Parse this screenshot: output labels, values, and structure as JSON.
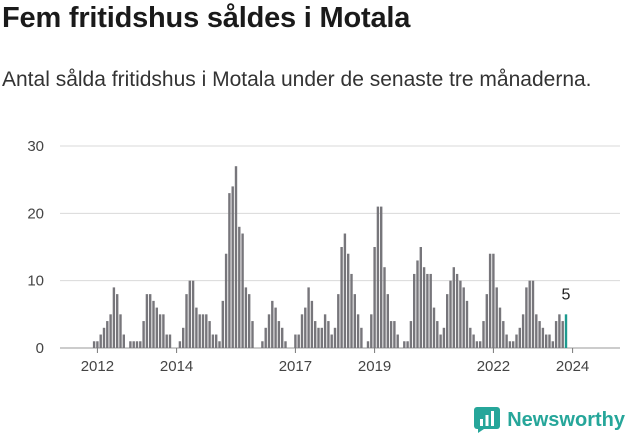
{
  "header": {
    "title": "Fem fritidshus såldes i Motala",
    "subtitle": "Antal sålda fritidshus i Motala under de senaste tre månaderna."
  },
  "brand": {
    "name": "Newsworthy",
    "logo_icon": "newsworthy-chart-icon",
    "color": "#26a69a"
  },
  "colors": {
    "bars": "#77767b",
    "highlight": "#1d9a8f",
    "grid": "#d9d9d9"
  },
  "chart_data": {
    "type": "bar",
    "title": "Fem fritidshus såldes i Motala",
    "subtitle": "Antal sålda fritidshus i Motala under de senaste tre månaderna.",
    "xlabel": "",
    "ylabel": "",
    "ylim": [
      0,
      30
    ],
    "yticks": [
      0,
      10,
      20,
      30
    ],
    "xticks": [
      {
        "label": "2012",
        "index": 4
      },
      {
        "label": "2014",
        "index": 28
      },
      {
        "label": "2017",
        "index": 64
      },
      {
        "label": "2019",
        "index": 88
      },
      {
        "label": "2022",
        "index": 124
      },
      {
        "label": "2024",
        "index": 148
      }
    ],
    "grid": "horizontal",
    "series": [
      {
        "values": [
          0,
          0,
          0,
          1,
          1,
          2,
          3,
          4,
          5,
          9,
          8,
          5,
          2,
          0,
          1,
          1,
          1,
          1,
          4,
          8,
          8,
          7,
          6,
          5,
          5,
          2,
          2,
          0,
          0,
          1,
          3,
          8,
          10,
          10,
          6,
          5,
          5,
          5,
          4,
          2,
          2,
          1,
          7,
          14,
          23,
          24,
          27,
          18,
          17,
          9,
          8,
          4,
          0,
          0,
          1,
          3,
          5,
          7,
          6,
          4,
          3,
          1,
          0,
          0,
          2,
          2,
          5,
          6,
          9,
          7,
          4,
          3,
          3,
          5,
          4,
          2,
          3,
          8,
          15,
          17,
          14,
          11,
          8,
          5,
          3,
          0,
          1,
          5,
          15,
          21,
          21,
          12,
          8,
          4,
          4,
          2,
          0,
          1,
          1,
          4,
          11,
          13,
          15,
          12,
          11,
          11,
          6,
          4,
          2,
          3,
          8,
          10,
          12,
          11,
          10,
          9,
          7,
          3,
          2,
          1,
          1,
          4,
          8,
          14,
          14,
          9,
          6,
          4,
          2,
          1,
          1,
          2,
          3,
          5,
          9,
          10,
          10,
          5,
          4,
          3,
          2,
          2,
          1,
          4,
          5,
          4,
          5
        ]
      }
    ],
    "highlight_last": true,
    "last_value_label": "5"
  }
}
